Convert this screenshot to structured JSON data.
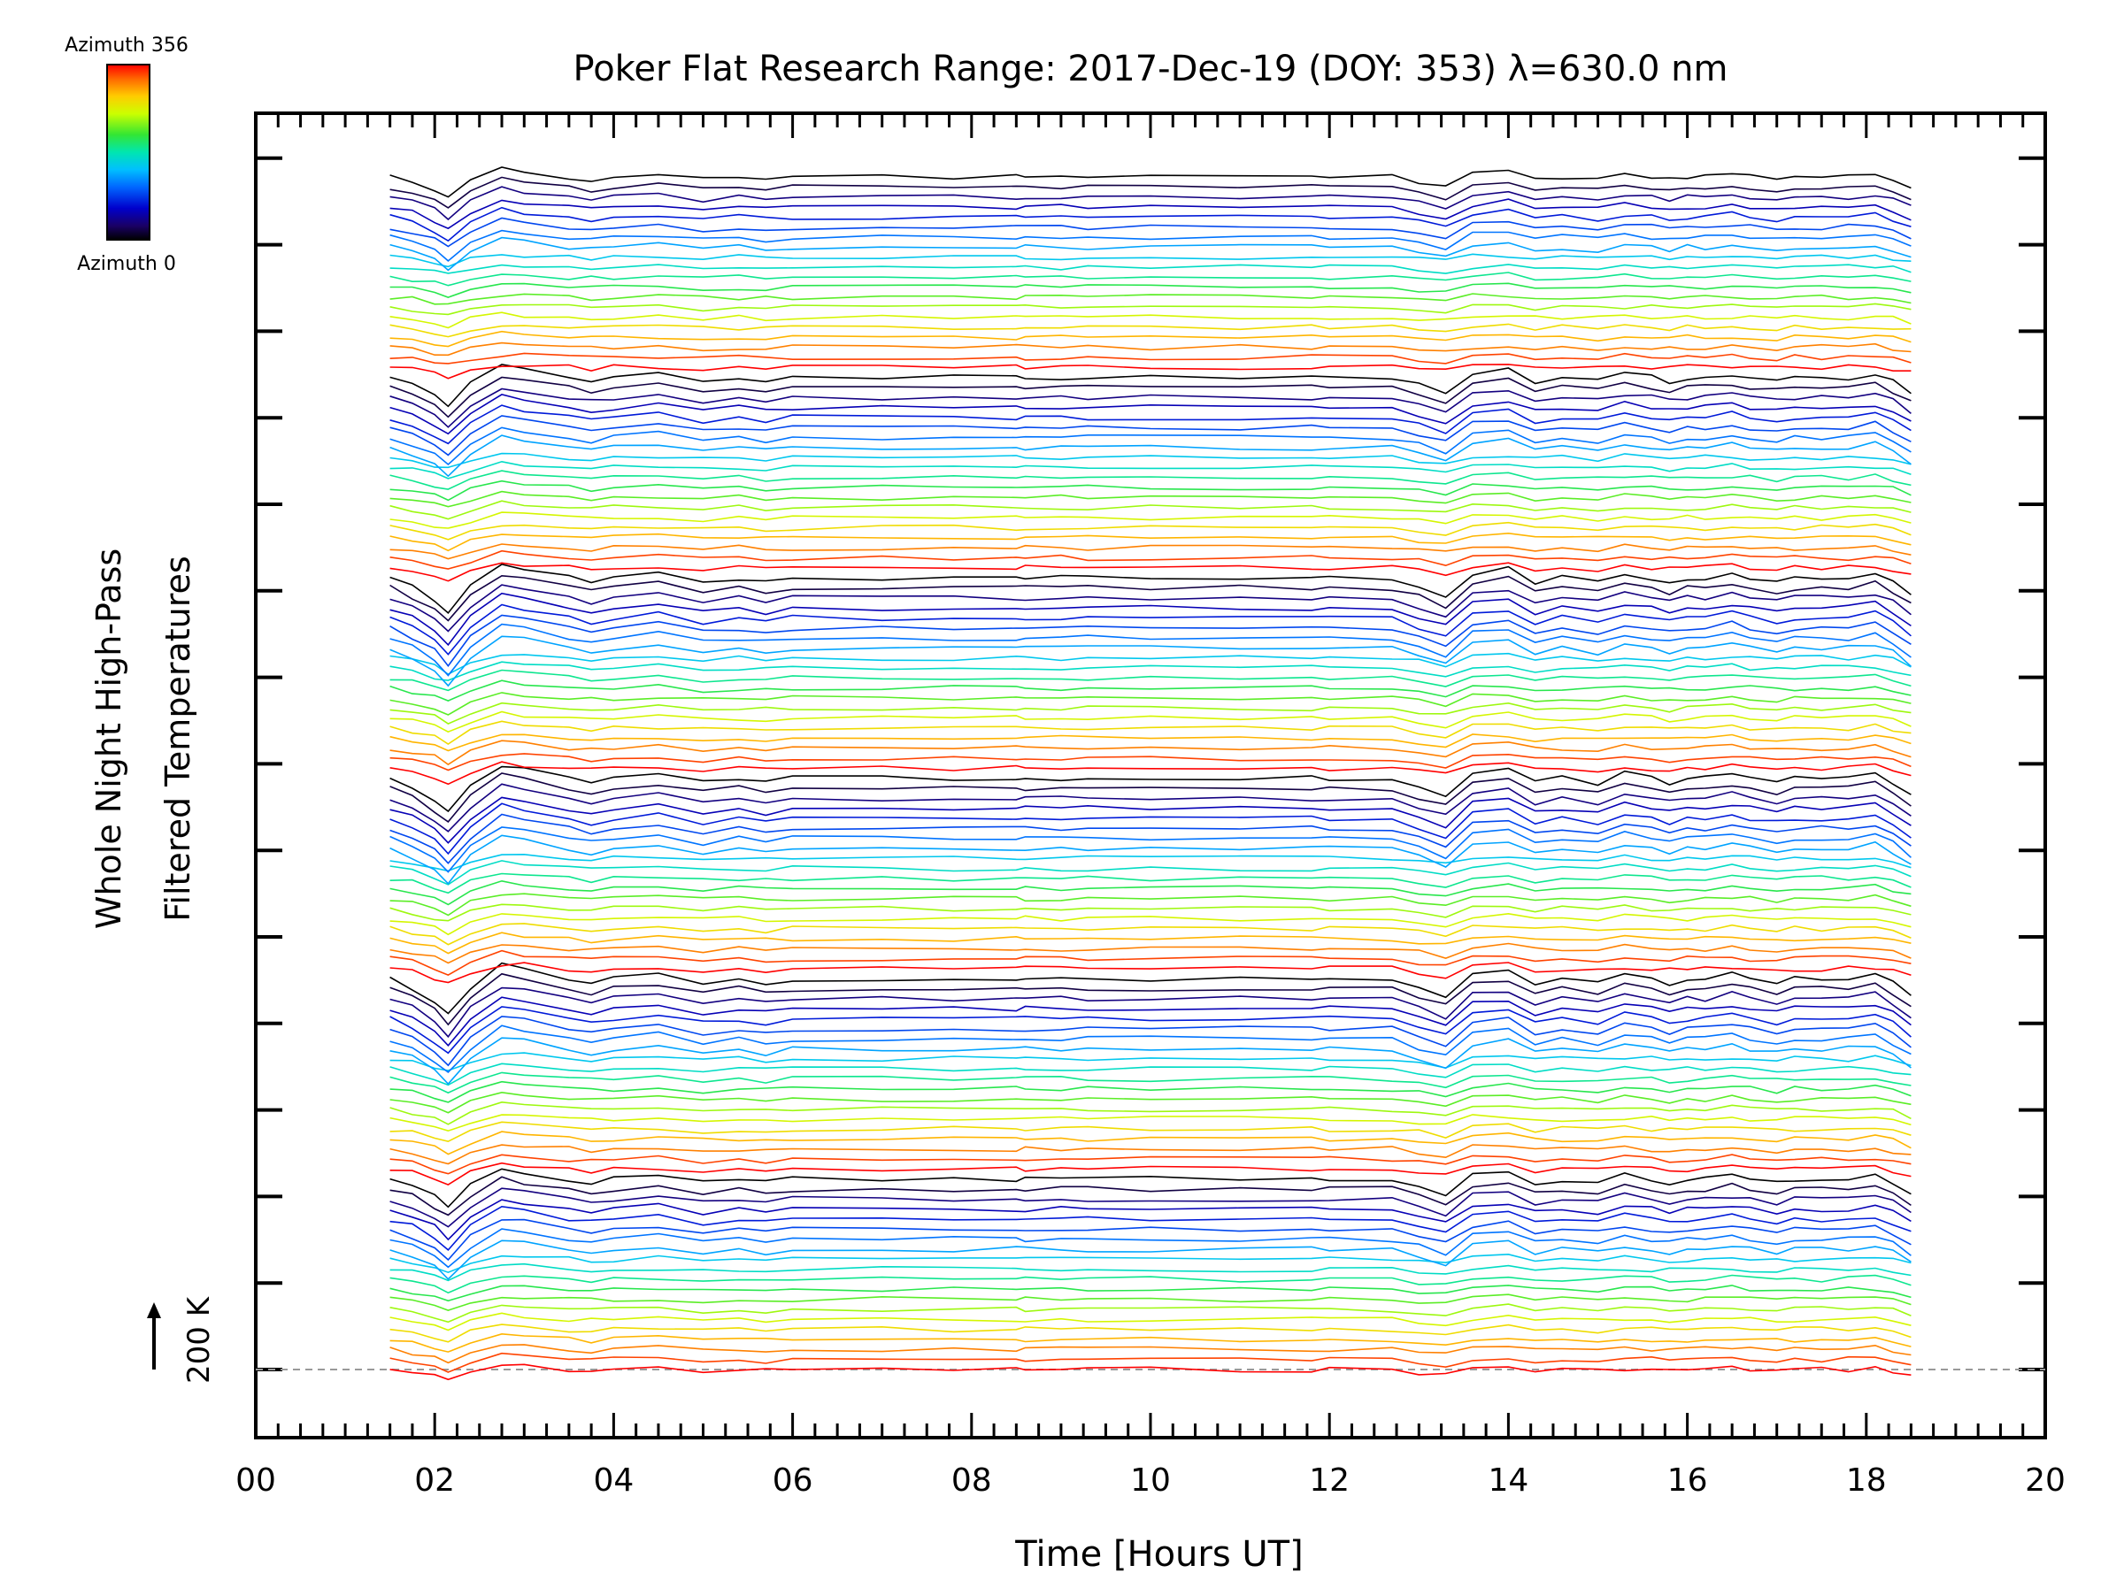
{
  "chart_data": {
    "type": "line",
    "title": "Poker Flat Research Range: 2017-Dec-19 (DOY: 353) λ=630.0 nm",
    "xlabel": "Time [Hours UT]",
    "ylabel_line1": "Whole Night High-Pass",
    "ylabel_line2": "Filtered Temperatures",
    "scale_label": "200 K",
    "scale_k": 200,
    "xlim": [
      0,
      20
    ],
    "x_tick_labels": [
      "00",
      "02",
      "04",
      "06",
      "08",
      "10",
      "12",
      "14",
      "16",
      "18",
      "20"
    ],
    "colorbar": {
      "top_label": "Azimuth 356",
      "bottom_label": "Azimuth 0",
      "colormap": "rainbow",
      "range": [
        0,
        356
      ]
    },
    "grid": false,
    "legend": "colorbar top-left",
    "description_of_series": "Stacked traces (one per azimuth, color-coded by azimuth 0-356), vertically offset; each trace is a whole-night high-pass filtered temperature time series from ~01.5 to ~18.5 UT.",
    "series_count": 120,
    "x": [
      1.5,
      1.75,
      2.0,
      2.15,
      2.4,
      2.75,
      3.0,
      3.5,
      3.75,
      4.0,
      4.5,
      5.0,
      5.4,
      5.7,
      6.0,
      7.0,
      7.8,
      8.5,
      8.6,
      9.0,
      9.3,
      10.0,
      11.0,
      11.8,
      12.0,
      12.7,
      13.0,
      13.3,
      13.6,
      14.0,
      14.3,
      14.6,
      15.0,
      15.3,
      15.6,
      15.8,
      16.0,
      16.2,
      16.5,
      16.7,
      17.0,
      17.2,
      17.5,
      17.8,
      18.1,
      18.3,
      18.5
    ],
    "base_pattern": [
      0,
      2,
      5,
      8,
      2,
      -3,
      -2,
      0,
      1,
      0,
      -1,
      1,
      0,
      1,
      0,
      0,
      0,
      0,
      0,
      0,
      0,
      0,
      0,
      0,
      0,
      0,
      2,
      4,
      -1,
      -2,
      1,
      0,
      1,
      -1,
      0,
      1,
      0,
      0,
      -1,
      0,
      1,
      0,
      0,
      0,
      -1,
      1,
      4
    ],
    "bands": [
      {
        "amp": 4
      },
      {
        "amp": 5
      },
      {
        "amp": 5
      },
      {
        "amp": 5
      },
      {
        "amp": 4
      },
      {
        "amp": 3
      },
      {
        "amp": 2
      }
    ]
  }
}
